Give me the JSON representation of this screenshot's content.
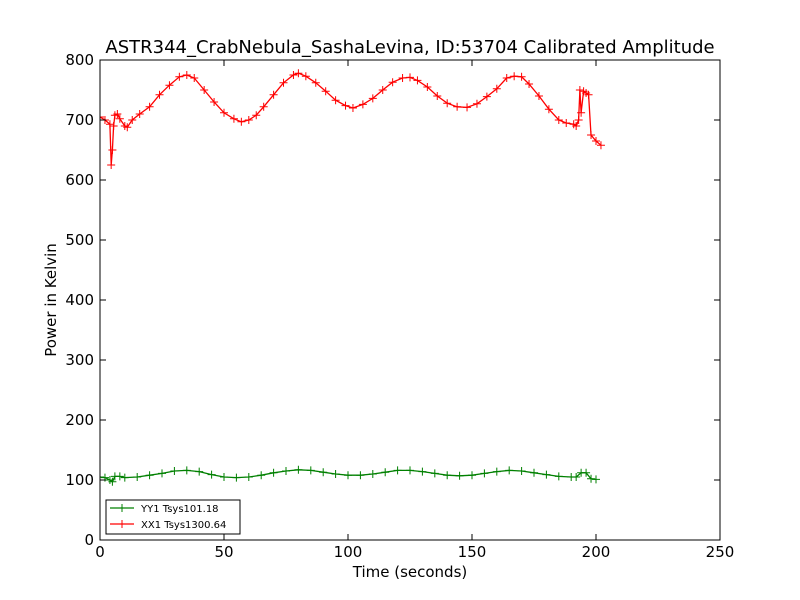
{
  "chart_data": {
    "type": "line",
    "title": "ASTR344_CrabNebula_SashaLevina, ID:53704 Calibrated Amplitude",
    "xlabel": "Time (seconds)",
    "ylabel": "Power in Kelvin",
    "xlim": [
      0,
      250
    ],
    "ylim": [
      0,
      800
    ],
    "xticks": [
      "0",
      "50",
      "100",
      "150",
      "200",
      "250"
    ],
    "yticks": [
      "0",
      "100",
      "200",
      "300",
      "400",
      "500",
      "600",
      "700",
      "800"
    ],
    "grid": false,
    "legend_position": "lower-left",
    "marker": "plus",
    "series": [
      {
        "name": "YY1 Tsys101.18",
        "color": "#008000",
        "points": [
          [
            0,
            105
          ],
          [
            2,
            104
          ],
          [
            4,
            100
          ],
          [
            5,
            97
          ],
          [
            6,
            106
          ],
          [
            8,
            106
          ],
          [
            10,
            104
          ],
          [
            15,
            105
          ],
          [
            20,
            108
          ],
          [
            25,
            111
          ],
          [
            30,
            115
          ],
          [
            35,
            116
          ],
          [
            40,
            114
          ],
          [
            45,
            109
          ],
          [
            50,
            105
          ],
          [
            55,
            104
          ],
          [
            60,
            105
          ],
          [
            65,
            108
          ],
          [
            70,
            112
          ],
          [
            75,
            115
          ],
          [
            80,
            117
          ],
          [
            85,
            116
          ],
          [
            90,
            113
          ],
          [
            95,
            110
          ],
          [
            100,
            108
          ],
          [
            105,
            108
          ],
          [
            110,
            110
          ],
          [
            115,
            113
          ],
          [
            120,
            116
          ],
          [
            125,
            116
          ],
          [
            130,
            114
          ],
          [
            135,
            111
          ],
          [
            140,
            108
          ],
          [
            145,
            107
          ],
          [
            150,
            108
          ],
          [
            155,
            111
          ],
          [
            160,
            114
          ],
          [
            165,
            116
          ],
          [
            170,
            115
          ],
          [
            175,
            112
          ],
          [
            180,
            109
          ],
          [
            185,
            106
          ],
          [
            190,
            105
          ],
          [
            192,
            105
          ],
          [
            194,
            112
          ],
          [
            196,
            112
          ],
          [
            198,
            102
          ],
          [
            200,
            101
          ]
        ]
      },
      {
        "name": "XX1 Tsys1300.64",
        "color": "#ff0000",
        "points": [
          [
            0,
            705
          ],
          [
            2,
            700
          ],
          [
            4,
            693
          ],
          [
            4.5,
            625
          ],
          [
            5,
            650
          ],
          [
            5.5,
            690
          ],
          [
            6,
            708
          ],
          [
            7,
            710
          ],
          [
            8,
            702
          ],
          [
            10,
            690
          ],
          [
            11,
            688
          ],
          [
            13,
            700
          ],
          [
            16,
            710
          ],
          [
            20,
            722
          ],
          [
            24,
            742
          ],
          [
            28,
            758
          ],
          [
            32,
            772
          ],
          [
            35,
            775
          ],
          [
            38,
            770
          ],
          [
            42,
            750
          ],
          [
            46,
            730
          ],
          [
            50,
            712
          ],
          [
            54,
            702
          ],
          [
            57,
            697
          ],
          [
            60,
            700
          ],
          [
            63,
            708
          ],
          [
            66,
            722
          ],
          [
            70,
            742
          ],
          [
            74,
            762
          ],
          [
            78,
            775
          ],
          [
            80,
            778
          ],
          [
            83,
            773
          ],
          [
            87,
            762
          ],
          [
            91,
            748
          ],
          [
            95,
            733
          ],
          [
            99,
            724
          ],
          [
            102,
            720
          ],
          [
            106,
            726
          ],
          [
            110,
            736
          ],
          [
            114,
            750
          ],
          [
            118,
            763
          ],
          [
            122,
            770
          ],
          [
            125,
            771
          ],
          [
            128,
            766
          ],
          [
            132,
            755
          ],
          [
            136,
            740
          ],
          [
            140,
            728
          ],
          [
            144,
            722
          ],
          [
            148,
            721
          ],
          [
            152,
            727
          ],
          [
            156,
            739
          ],
          [
            160,
            752
          ],
          [
            164,
            770
          ],
          [
            167,
            773
          ],
          [
            170,
            772
          ],
          [
            173,
            760
          ],
          [
            177,
            740
          ],
          [
            181,
            718
          ],
          [
            185,
            700
          ],
          [
            188,
            695
          ],
          [
            191,
            693
          ],
          [
            192,
            690
          ],
          [
            193,
            700
          ],
          [
            193.5,
            750
          ],
          [
            194,
            712
          ],
          [
            195,
            748
          ],
          [
            196,
            745
          ],
          [
            197,
            742
          ],
          [
            198,
            675
          ],
          [
            200,
            665
          ],
          [
            202,
            658
          ]
        ]
      }
    ]
  }
}
